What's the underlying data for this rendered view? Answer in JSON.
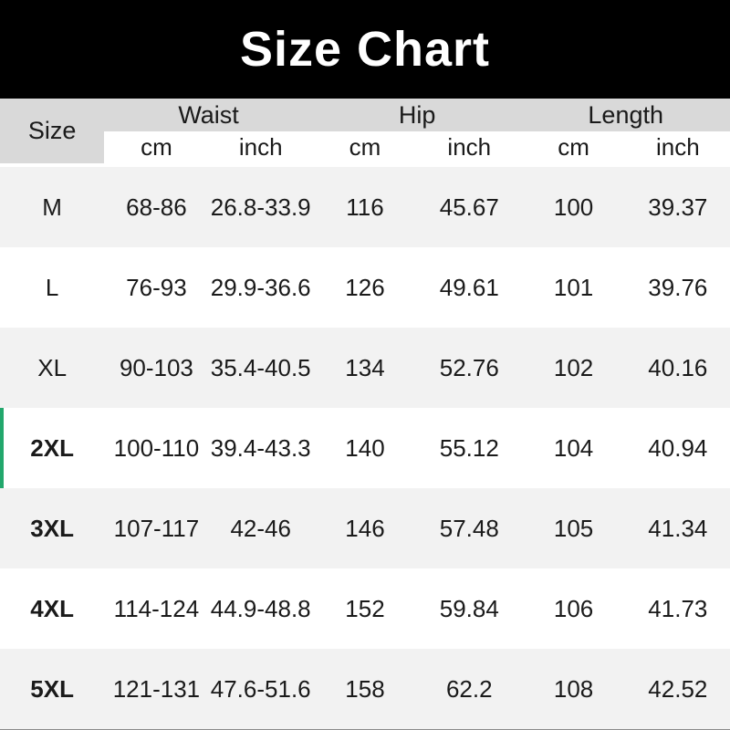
{
  "title": "Size Chart",
  "colors": {
    "banner_bg": "#000000",
    "title_text": "#ffffff",
    "header_gray": "#d9d9d9",
    "row_alt_gray": "#f2f2f2",
    "row_white": "#ffffff",
    "text": "#1a1a1a",
    "accent_green": "#22a76c"
  },
  "table": {
    "size_header": "Size",
    "groups": [
      {
        "label": "Waist"
      },
      {
        "label": "Hip"
      },
      {
        "label": "Length"
      }
    ],
    "unit_headers": [
      "cm",
      "inch",
      "cm",
      "inch",
      "cm",
      "inch"
    ],
    "rows": [
      {
        "size": "M",
        "waist_cm": "68-86",
        "waist_inch": "26.8-33.9",
        "hip_cm": "116",
        "hip_inch": "45.67",
        "length_cm": "100",
        "length_inch": "39.37"
      },
      {
        "size": "L",
        "waist_cm": "76-93",
        "waist_inch": "29.9-36.6",
        "hip_cm": "126",
        "hip_inch": "49.61",
        "length_cm": "101",
        "length_inch": "39.76"
      },
      {
        "size": "XL",
        "waist_cm": "90-103",
        "waist_inch": "35.4-40.5",
        "hip_cm": "134",
        "hip_inch": "52.76",
        "length_cm": "102",
        "length_inch": "40.16"
      },
      {
        "size": "2XL",
        "waist_cm": "100-110",
        "waist_inch": "39.4-43.3",
        "hip_cm": "140",
        "hip_inch": "55.12",
        "length_cm": "104",
        "length_inch": "40.94",
        "highlighted": true
      },
      {
        "size": "3XL",
        "waist_cm": "107-117",
        "waist_inch": "42-46",
        "hip_cm": "146",
        "hip_inch": "57.48",
        "length_cm": "105",
        "length_inch": "41.34"
      },
      {
        "size": "4XL",
        "waist_cm": "114-124",
        "waist_inch": "44.9-48.8",
        "hip_cm": "152",
        "hip_inch": "59.84",
        "length_cm": "106",
        "length_inch": "41.73"
      },
      {
        "size": "5XL",
        "waist_cm": "121-131",
        "waist_inch": "47.6-51.6",
        "hip_cm": "158",
        "hip_inch": "62.2",
        "length_cm": "108",
        "length_inch": "42.52"
      }
    ]
  }
}
